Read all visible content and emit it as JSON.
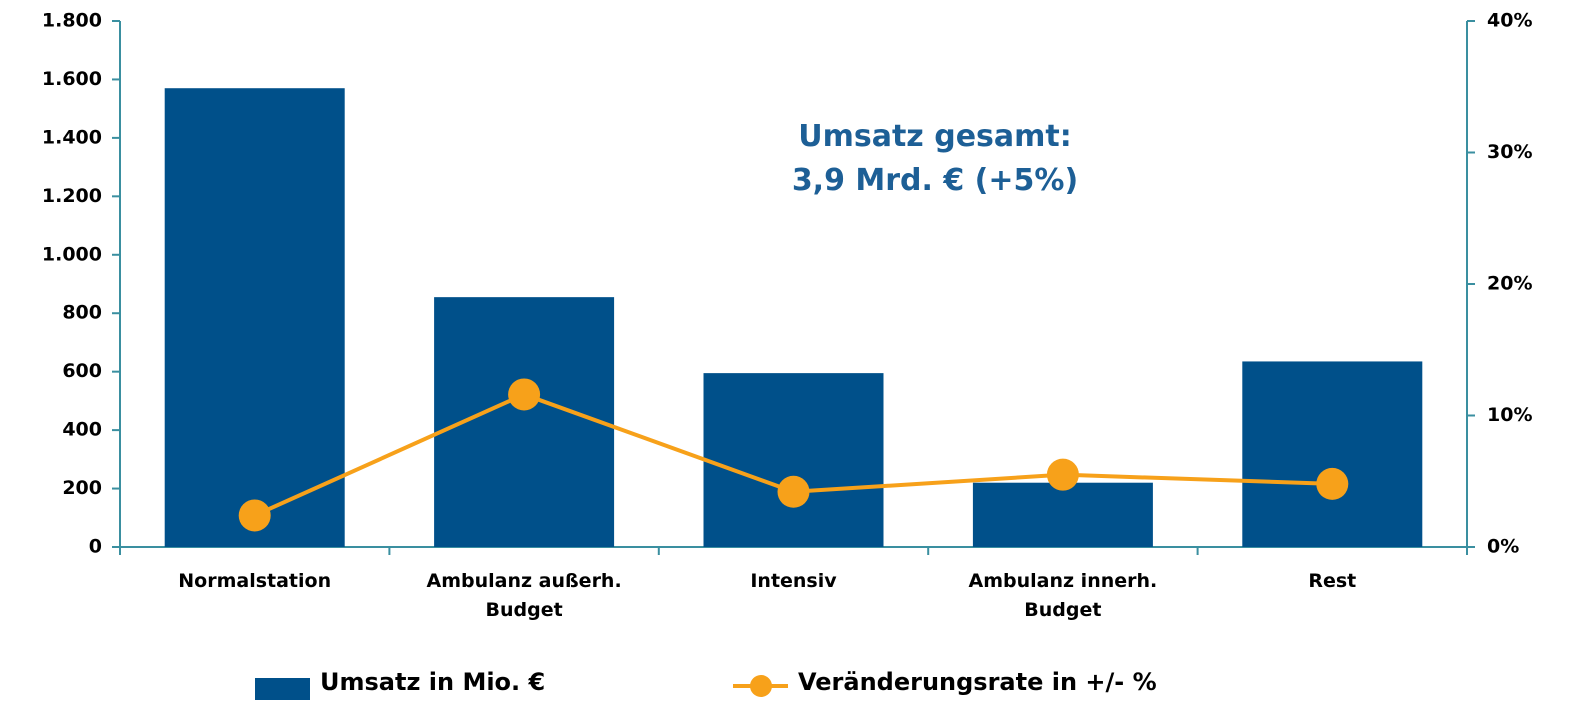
{
  "chart_data": {
    "type": "bar_line",
    "annotation": "Umsatz gesamt:\n3,9 Mrd. € (+5%)",
    "categories": [
      "Normalstation",
      "Ambulanz außerh.\nBudget",
      "Intensiv",
      "Ambulanz innerh.\nBudget",
      "Rest"
    ],
    "series": [
      {
        "name": "Umsatz in Mio. €",
        "color": "#00508a",
        "type": "bar",
        "values": [
          1570,
          855,
          595,
          220,
          635
        ]
      },
      {
        "name": "Veränderungsrate in +/- %",
        "color": "#f7a11a",
        "type": "line",
        "axis": "y2",
        "values": [
          2.4,
          11.6,
          4.2,
          5.5,
          4.8
        ]
      }
    ],
    "ylim": [
      0,
      1800
    ],
    "yticks": [
      0,
      200,
      400,
      600,
      800,
      {
        "value": 1000,
        "label": "1.000"
      },
      {
        "value": 1200,
        "label": "1.200"
      },
      {
        "value": 1400,
        "label": "1.400"
      },
      {
        "value": 1600,
        "label": "1.600"
      },
      {
        "value": 1800,
        "label": "1.800"
      }
    ],
    "y2lim": [
      0,
      40
    ],
    "y2ticks": [
      {
        "value": 0,
        "label": "0%"
      },
      {
        "value": 10,
        "label": "10%"
      },
      {
        "value": 20,
        "label": "20%"
      },
      {
        "value": 30,
        "label": "30%"
      },
      {
        "value": 40,
        "label": "40%"
      }
    ],
    "axis_color": "#3a8fa0"
  }
}
